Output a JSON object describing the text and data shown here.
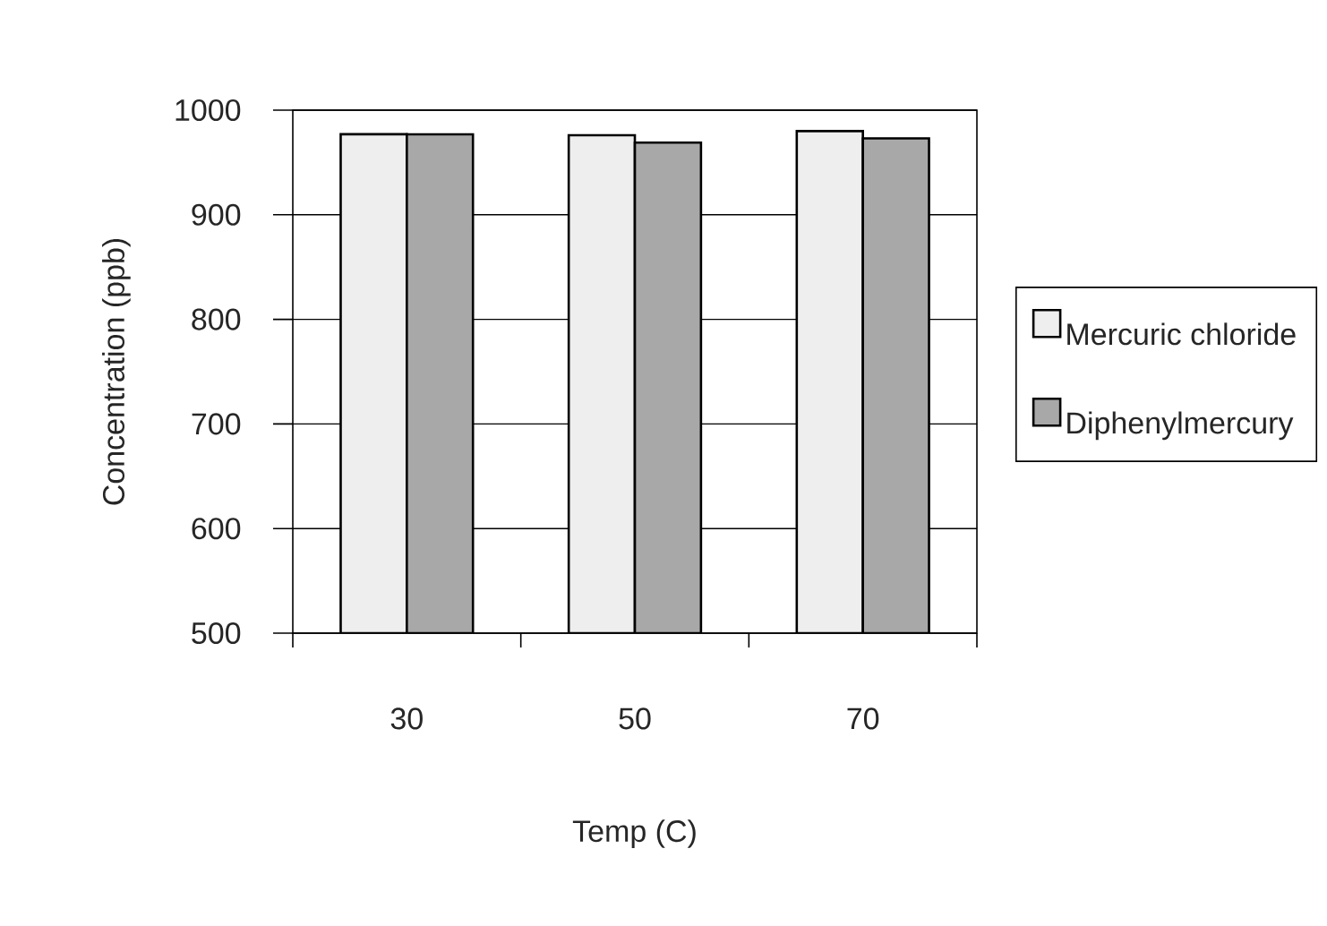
{
  "chart_data": {
    "type": "bar",
    "xlabel": "Temp (C)",
    "ylabel": "Concentration (ppb)",
    "categories": [
      "30",
      "50",
      "70"
    ],
    "series": [
      {
        "name": "Mercuric chloride",
        "color": "#eeeeee",
        "values": [
          977,
          976,
          980
        ]
      },
      {
        "name": "Diphenylmercury",
        "color": "#a8a8a8",
        "values": [
          977,
          969,
          973
        ]
      }
    ],
    "ylim": [
      500,
      1000
    ],
    "yticks": [
      500,
      600,
      700,
      800,
      900,
      1000
    ],
    "grid": "y",
    "legend": "right"
  }
}
